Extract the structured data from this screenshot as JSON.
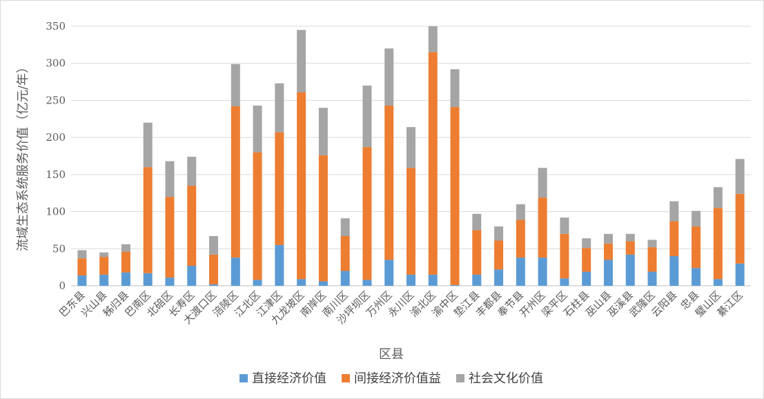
{
  "chart_data": {
    "type": "bar",
    "stacked": true,
    "xlabel": "区县",
    "ylabel": "流域生态系统服务价值（亿元/年）",
    "ylim": [
      0,
      350
    ],
    "yticks": [
      0,
      50,
      100,
      150,
      200,
      250,
      300,
      350
    ],
    "grid": true,
    "legend_position": "bottom",
    "categories": [
      "巴东县",
      "兴山县",
      "秭归县",
      "巴南区",
      "北碚区",
      "长寿区",
      "大渡口区",
      "涪陵区",
      "江北区",
      "江津区",
      "九龙坡区",
      "南岸区",
      "南川区",
      "沙坪坝区",
      "万州区",
      "永川区",
      "渝北区",
      "渝中区",
      "垫江县",
      "丰都县",
      "奉节县",
      "开州区",
      "梁平区",
      "石柱县",
      "巫山县",
      "巫溪县",
      "武隆区",
      "云阳县",
      "忠县",
      "璧山区",
      "綦江区"
    ],
    "series": [
      {
        "name": "直接经济价值",
        "color": "#5b9bd5",
        "values": [
          14,
          15,
          18,
          17,
          11,
          27,
          2,
          38,
          8,
          55,
          9,
          6,
          20,
          8,
          35,
          15,
          15,
          1,
          15,
          22,
          38,
          38,
          10,
          19,
          35,
          42,
          19,
          40,
          24,
          9,
          30
        ]
      },
      {
        "name": "间接经济价值益",
        "color": "#ed7d31",
        "values": [
          23,
          24,
          28,
          143,
          109,
          108,
          40,
          204,
          172,
          152,
          252,
          170,
          47,
          179,
          208,
          144,
          300,
          240,
          60,
          39,
          51,
          81,
          60,
          32,
          22,
          18,
          33,
          47,
          56,
          96,
          94
        ]
      },
      {
        "name": "社会文化价值",
        "color": "#a5a5a5",
        "values": [
          11,
          6,
          10,
          60,
          48,
          39,
          25,
          57,
          63,
          66,
          84,
          64,
          24,
          83,
          77,
          55,
          35,
          51,
          22,
          19,
          21,
          40,
          22,
          13,
          13,
          10,
          10,
          27,
          21,
          28,
          47
        ]
      }
    ]
  }
}
